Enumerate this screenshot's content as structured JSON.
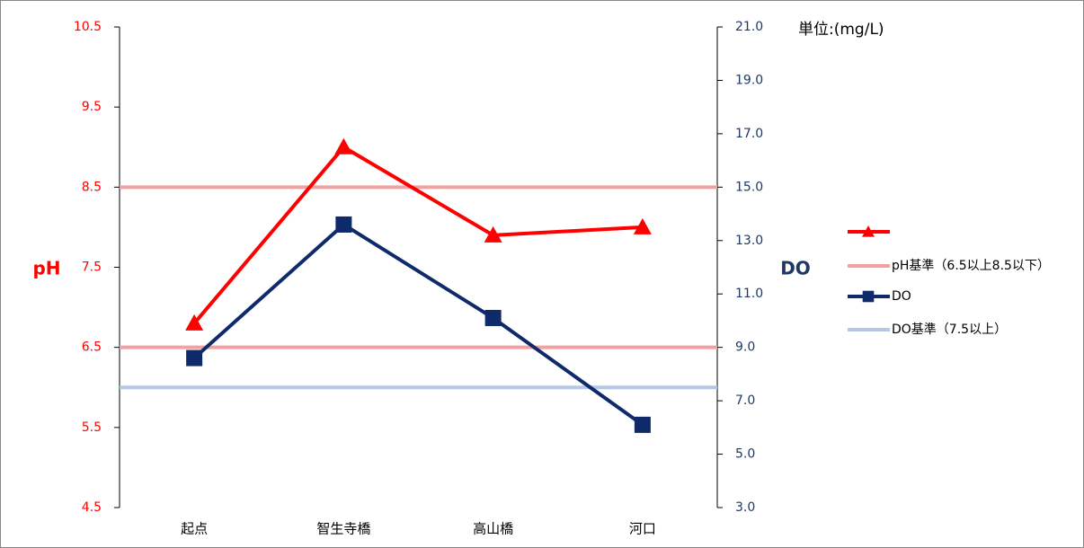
{
  "chart_data": {
    "type": "line",
    "categories": [
      "起点",
      "智生寺橋",
      "高山橋",
      "河口"
    ],
    "ylabel": "pH",
    "y2label": "DO",
    "unit_label": "単位:(mg/L)",
    "ylim": [
      4.5,
      10.5
    ],
    "yticks": [
      4.5,
      5.5,
      6.5,
      7.5,
      8.5,
      9.5,
      10.5
    ],
    "y2lim": [
      3,
      21
    ],
    "y2ticks": [
      {
        "value": 3,
        "label": "3.0"
      },
      {
        "value": 5,
        "label": "5.0"
      },
      {
        "value": 7,
        "label": "7.0"
      },
      {
        "value": 9,
        "label": "9.0"
      },
      {
        "value": 11,
        "label": "11.0"
      },
      {
        "value": 13,
        "label": "13.0"
      },
      {
        "value": 15,
        "label": "15.0"
      },
      {
        "value": 17,
        "label": "17.0"
      },
      {
        "value": 19,
        "label": "19.0"
      },
      {
        "value": 21,
        "label": "21.0"
      }
    ],
    "ycolor": "#ff0000",
    "y2color": "#1f3864",
    "series": [
      {
        "color": "#ff0000",
        "marker": "triangle",
        "values": [
          6.8,
          9.0,
          7.9,
          8.0
        ]
      },
      {
        "name": "DO",
        "color": "#0e2a6b",
        "marker": "square",
        "axis": "y2",
        "values": [
          8.6,
          13.6,
          10.1,
          6.1
        ]
      }
    ],
    "reference_lines": [
      {
        "name": "pH基準（6.5以上8.5以下）",
        "color": "#f4a0a0",
        "values": [
          6.5,
          8.5
        ]
      },
      {
        "name": "DO基準（7.5以上）",
        "color": "#b4c7e7",
        "axis": "y2",
        "values": [
          7.5
        ]
      }
    ]
  }
}
